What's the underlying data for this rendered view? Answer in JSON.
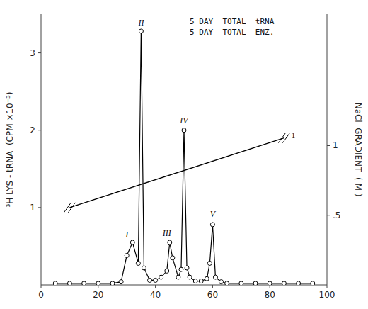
{
  "chart_data": {
    "type": "line",
    "y_label": "³H LYS - tRNA  (CPM ×10⁻³)",
    "y2_label": "NaCl  GRADIENT  ( M )",
    "series": [
      {
        "type": "line",
        "marker": "circle",
        "color": "#000000",
        "x": [
          5,
          10,
          15,
          20,
          25,
          28,
          30,
          32,
          34,
          35,
          36,
          38,
          40,
          42,
          44,
          45,
          46,
          48,
          49,
          50,
          51,
          52,
          54,
          56,
          58,
          59,
          60,
          61,
          63,
          65,
          70,
          75,
          80,
          85,
          90,
          95
        ],
        "values": [
          0.02,
          0.02,
          0.02,
          0.02,
          0.02,
          0.04,
          0.38,
          0.55,
          0.28,
          3.28,
          0.22,
          0.06,
          0.06,
          0.1,
          0.18,
          0.55,
          0.35,
          0.1,
          0.2,
          2.0,
          0.22,
          0.1,
          0.05,
          0.05,
          0.08,
          0.28,
          0.78,
          0.1,
          0.04,
          0.02,
          0.02,
          0.02,
          0.02,
          0.02,
          0.02,
          0.02
        ]
      },
      {
        "type": "line",
        "marker": "none",
        "color": "#000000",
        "x": [
          10,
          85
        ],
        "values": [
          1.0,
          1.9
        ]
      }
    ],
    "annotations": [
      {
        "text": "I",
        "x": 30,
        "y": 0.58
      },
      {
        "text": "II",
        "x": 35,
        "y": 3.32
      },
      {
        "text": "III",
        "x": 44,
        "y": 0.6
      },
      {
        "text": "IV",
        "x": 50,
        "y": 2.05
      },
      {
        "text": "V",
        "x": 60,
        "y": 0.84
      },
      {
        "text": "1",
        "x": 87,
        "y": 1.93
      }
    ],
    "legend_text": [
      "5 DAY  TOTAL  tRNA",
      "5 DAY  TOTAL  ENZ."
    ],
    "xlim": [
      0,
      100
    ],
    "xticks": [
      0,
      20,
      40,
      60,
      80,
      100
    ],
    "ylim": [
      0,
      3.5
    ],
    "yticks": [
      1,
      2,
      3
    ],
    "y2lim": [
      0.0,
      1.944
    ],
    "y2ticks": [
      {
        "value": 0.5,
        "label": ".5"
      },
      1
    ],
    "grid": false
  }
}
